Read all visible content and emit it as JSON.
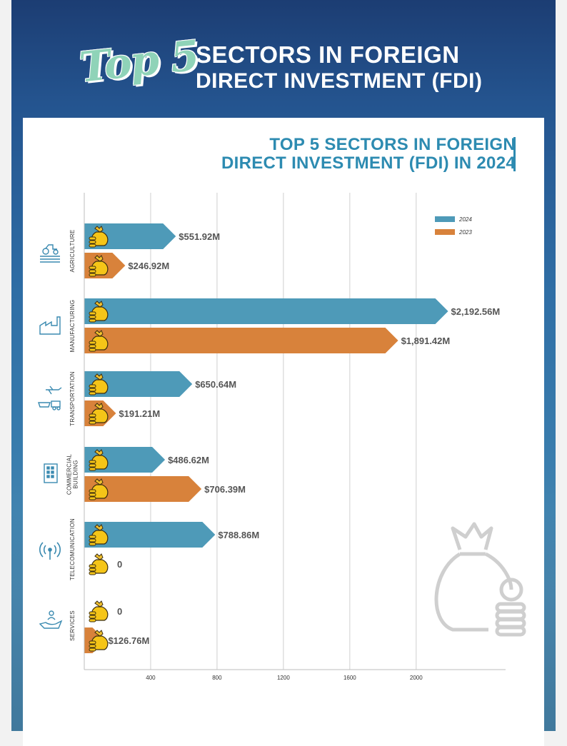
{
  "header": {
    "logo_text": "Top 5",
    "title_line1": "SECTORS IN FOREIGN",
    "title_line2": "DIRECT INVESTMENT (FDI)"
  },
  "colors": {
    "series_2024": "#4e9ab8",
    "series_2023": "#d8823b",
    "title": "#2d8bb1",
    "icon": "#3a8ab0"
  },
  "chart_data": {
    "type": "bar",
    "orientation": "horizontal",
    "title_line1": "TOP 5 SECTORS IN FOREIGN",
    "title_line2": "DIRECT INVESTMENT (FDI) IN 2024",
    "categories": [
      "AGRICULTURE",
      "MANUFACTURING",
      "TRANSPORTATION",
      "COMMERCIAL BUILDING",
      "TELECOMUNICATION",
      "SERVICES"
    ],
    "category_icons": [
      "tractor-icon",
      "factory-icon",
      "transport-icon",
      "building-icon",
      "antenna-icon",
      "service-hand-icon"
    ],
    "series": [
      {
        "name": "2024",
        "values": [
          551.92,
          2192.56,
          650.64,
          486.62,
          788.86,
          0
        ],
        "labels": [
          "$551.92M",
          "$2,192.56M",
          "$650.64M",
          "$486.62M",
          "$788.86M",
          "0"
        ]
      },
      {
        "name": "2023",
        "values": [
          246.92,
          1891.42,
          191.21,
          706.39,
          0,
          126.76
        ],
        "labels": [
          "$246.92M",
          "$1,891.42M",
          "$191.21M",
          "$706.39M",
          "0",
          "$126.76M"
        ]
      }
    ],
    "xticks": [
      "400",
      "800",
      "1200",
      "1600",
      "2000"
    ],
    "xlim": [
      0,
      2500
    ],
    "grid": true,
    "legend_position": "top-right",
    "bar_marker_icon": "money-bag-icon",
    "decoration_icon": "money-bag-coins-icon"
  }
}
